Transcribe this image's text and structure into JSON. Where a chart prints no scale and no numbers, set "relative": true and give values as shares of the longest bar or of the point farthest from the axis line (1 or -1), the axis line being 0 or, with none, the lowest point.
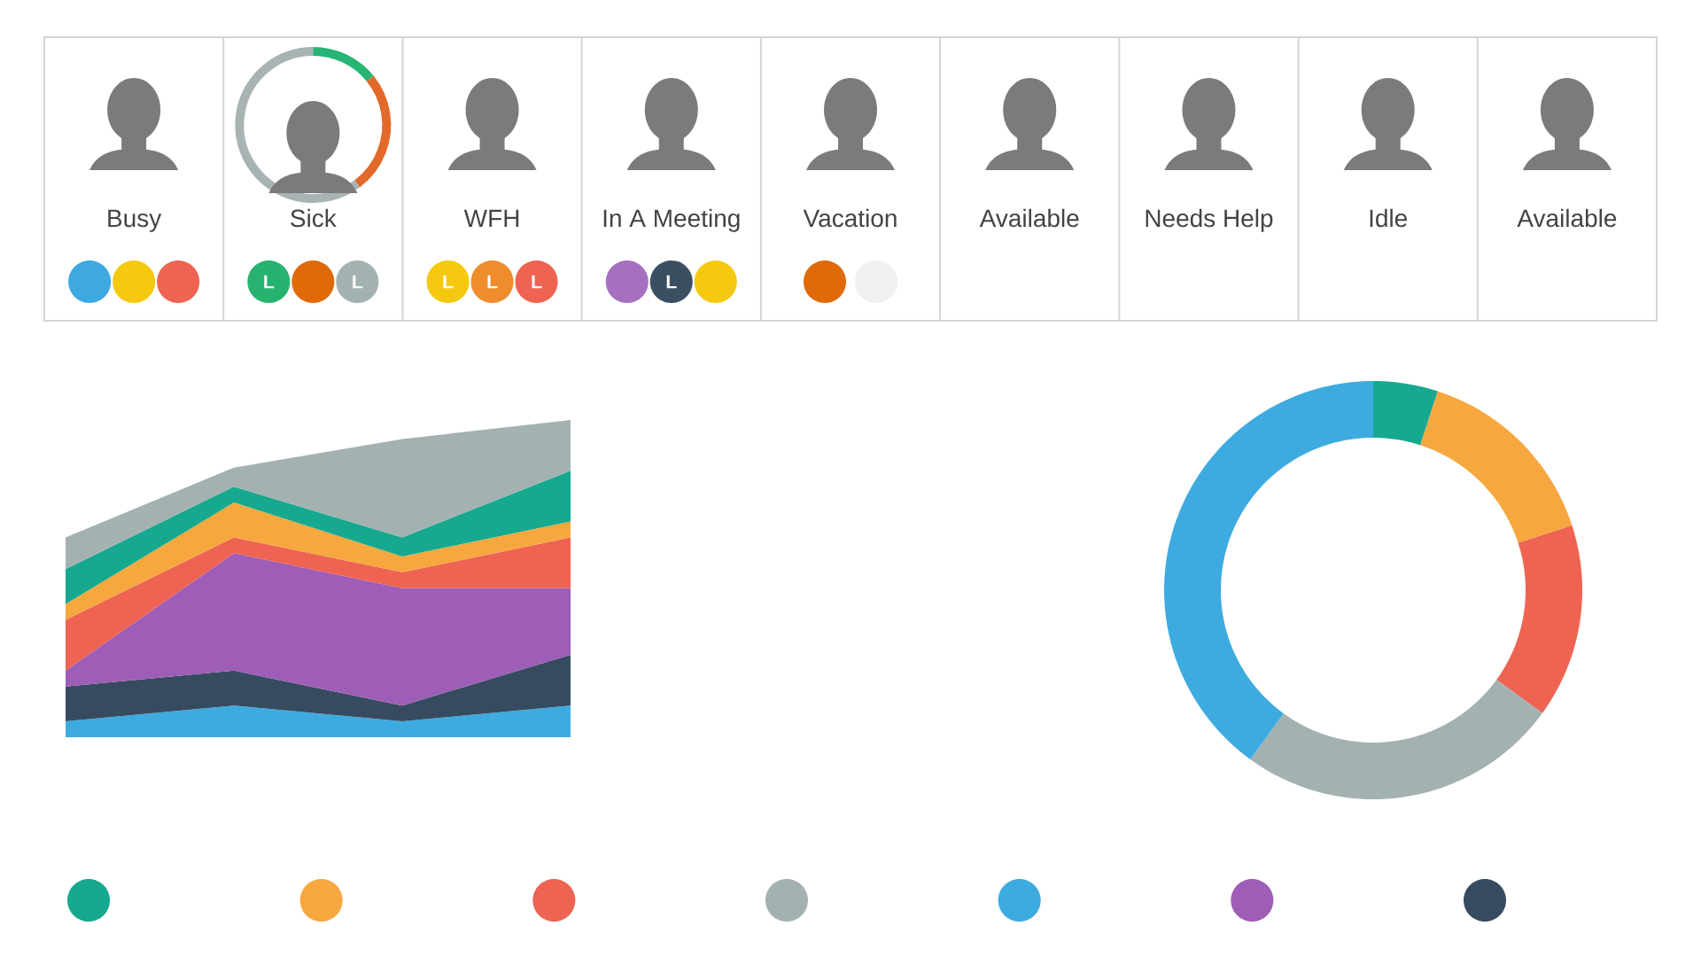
{
  "chart_data": [
    {
      "type": "other",
      "categories": [
        "Busy",
        "Sick",
        "WFH",
        "In A Meeting",
        "Vacation",
        "Available",
        "Needs Help",
        "Idle",
        "Available"
      ],
      "annotations": [
        "L",
        "L",
        "L",
        "L",
        "L",
        "L"
      ]
    },
    {
      "type": "area",
      "categories": [
        null,
        null,
        null,
        null
      ],
      "stacked": true,
      "relative": true,
      "series": [
        {
          "color": "#3eabe0",
          "values": [
            0.05,
            0.1,
            0.05,
            0.1
          ]
        },
        {
          "color": "#374b60",
          "values": [
            0.11,
            0.11,
            0.05,
            0.16
          ]
        },
        {
          "color": "#9e5db6",
          "values": [
            0.05,
            0.37,
            0.37,
            0.21
          ]
        },
        {
          "color": "#ee6352",
          "values": [
            0.16,
            0.05,
            0.05,
            0.16
          ]
        },
        {
          "color": "#f6a83f",
          "values": [
            0.05,
            0.11,
            0.05,
            0.05
          ]
        },
        {
          "color": "#16a98f",
          "values": [
            0.11,
            0.05,
            0.06,
            0.16
          ]
        },
        {
          "color": "#a3b2b1",
          "values": [
            0.1,
            0.06,
            0.31,
            0.16
          ]
        }
      ]
    },
    {
      "type": "donut",
      "categories": [
        null,
        null,
        null,
        null,
        null
      ],
      "values": [
        5,
        15,
        15,
        25,
        40
      ],
      "colors": [
        "#16a98f",
        "#f6a83f",
        "#ee6352",
        "#a3b2b1",
        "#3eabe0"
      ]
    }
  ]
}
